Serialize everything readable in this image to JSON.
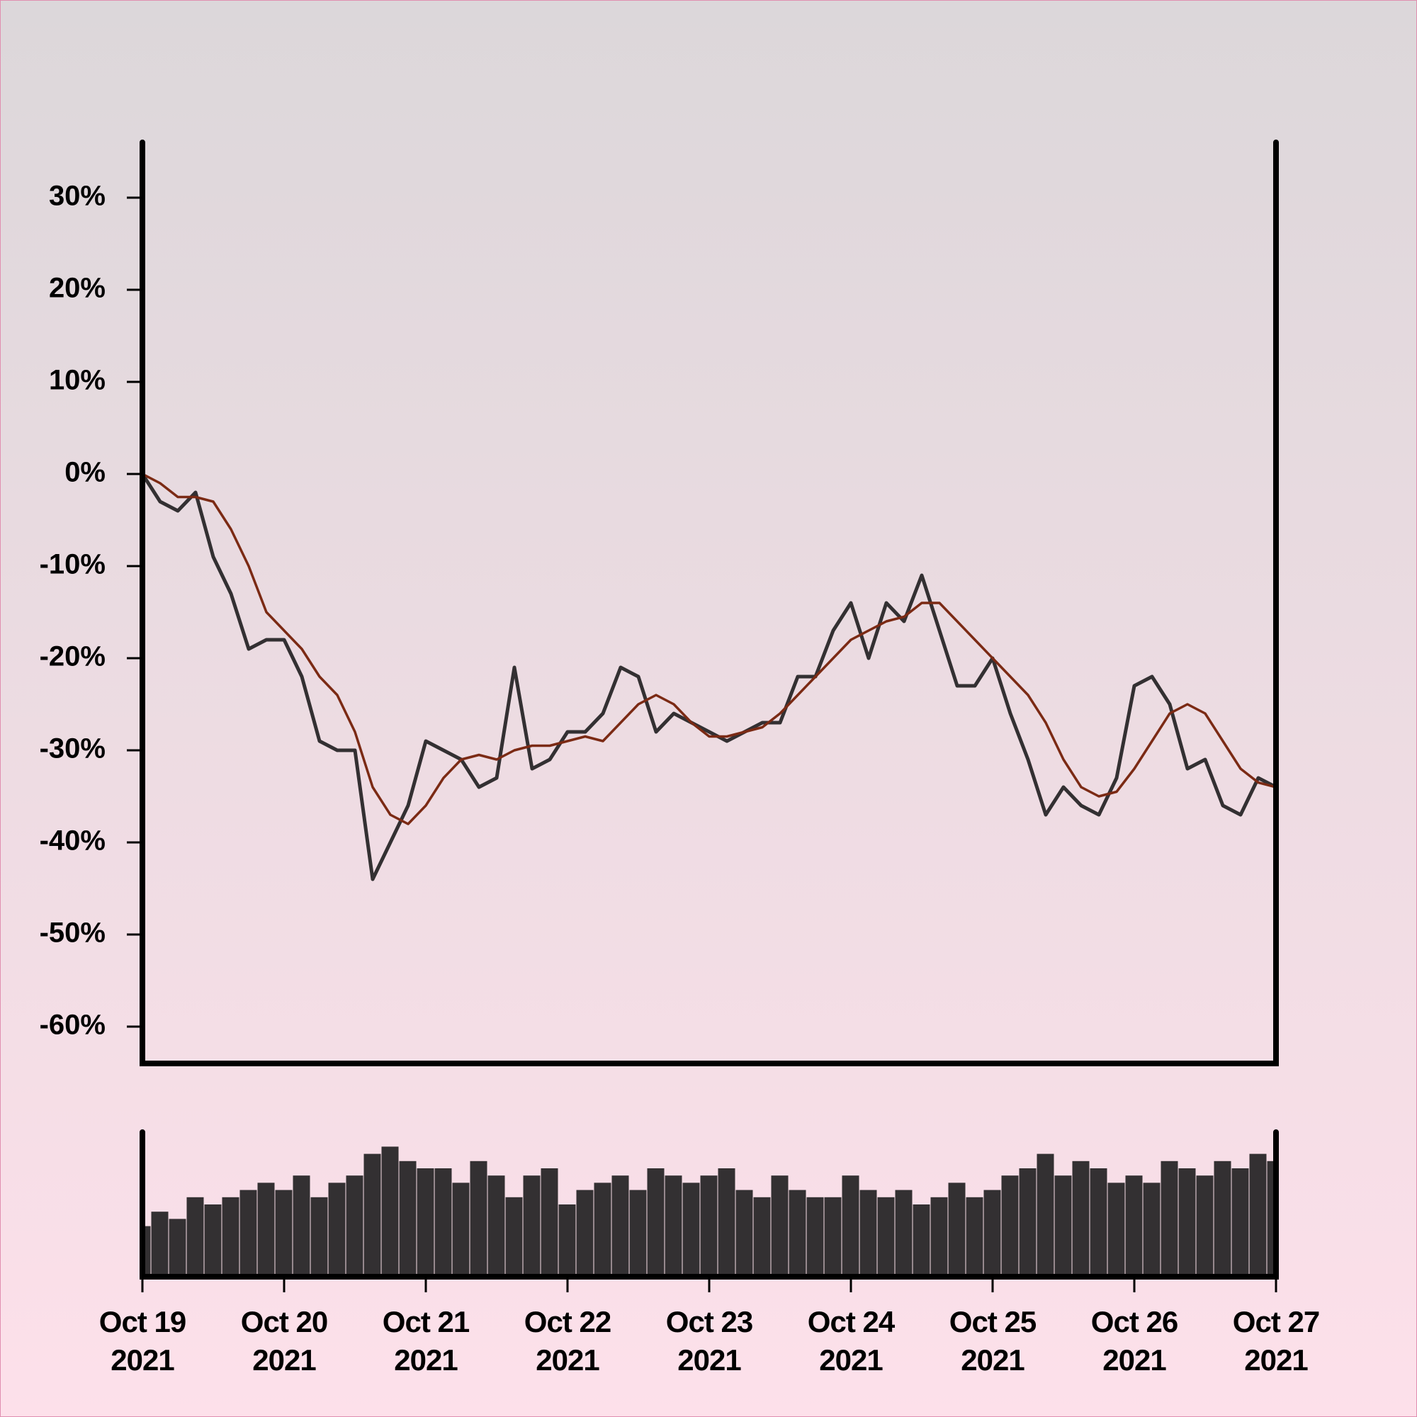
{
  "chart_data": [
    {
      "type": "line",
      "x": [
        0,
        0.125,
        0.25,
        0.375,
        0.5,
        0.625,
        0.75,
        0.875,
        1,
        1.125,
        1.25,
        1.375,
        1.5,
        1.625,
        1.75,
        1.875,
        2,
        2.125,
        2.25,
        2.375,
        2.5,
        2.625,
        2.75,
        2.875,
        3,
        3.125,
        3.25,
        3.375,
        3.5,
        3.625,
        3.75,
        3.875,
        4,
        4.125,
        4.25,
        4.375,
        4.5,
        4.625,
        4.75,
        4.875,
        5,
        5.125,
        5.25,
        5.375,
        5.5,
        5.625,
        5.75,
        5.875,
        6,
        6.125,
        6.25,
        6.375,
        6.5,
        6.625,
        6.75,
        6.875,
        7,
        7.125,
        7.25,
        7.375,
        7.5,
        7.625,
        7.75,
        7.875,
        8
      ],
      "series": [
        {
          "color": "#333032",
          "values": [
            0,
            -3,
            -4,
            -2,
            -9,
            -13,
            -19,
            -18,
            -18,
            -22,
            -29,
            -30,
            -30,
            -44,
            -40,
            -36,
            -29,
            -30,
            -31,
            -34,
            -33,
            -21,
            -32,
            -31,
            -28,
            -28,
            -26,
            -21,
            -22,
            -28,
            -26,
            -27,
            -28,
            -29,
            -28,
            -27,
            -27,
            -22,
            -22,
            -17,
            -14,
            -20,
            -14,
            -16,
            -11,
            -17,
            -23,
            -23,
            -20,
            -26,
            -31,
            -37,
            -34,
            -36,
            -37,
            -33,
            -23,
            -22,
            -25,
            -32,
            -31,
            -36,
            -37,
            -33,
            -34
          ]
        },
        {
          "color": "#7b2a14",
          "values": [
            0,
            -1,
            -2.5,
            -2.5,
            -3,
            -6,
            -10,
            -15,
            -17,
            -19,
            -22,
            -24,
            -28,
            -34,
            -37,
            -38,
            -36,
            -33,
            -31,
            -30.5,
            -31,
            -30,
            -29.5,
            -29.5,
            -29,
            -28.5,
            -29,
            -27,
            -25,
            -24,
            -25,
            -27,
            -28.5,
            -28.5,
            -28,
            -27.5,
            -26,
            -24,
            -22,
            -20,
            -18,
            -17,
            -16,
            -15.5,
            -14,
            -14,
            -16,
            -18,
            -20,
            -22,
            -24,
            -27,
            -31,
            -34,
            -35,
            -34.5,
            -32,
            -29,
            -26,
            -25,
            -26,
            -29,
            -32,
            -33.5,
            -34
          ]
        }
      ],
      "xlim": [
        0,
        8
      ],
      "ylim": [
        -64,
        36
      ],
      "yticks": [
        {
          "value": 30,
          "label": "30%"
        },
        {
          "value": 20,
          "label": "20%"
        },
        {
          "value": 10,
          "label": "10%"
        },
        {
          "value": 0,
          "label": "0%"
        },
        {
          "value": -10,
          "label": "-10%"
        },
        {
          "value": -20,
          "label": "-20%"
        },
        {
          "value": -30,
          "label": "-30%"
        },
        {
          "value": -40,
          "label": "-40%"
        },
        {
          "value": -50,
          "label": "-50%"
        },
        {
          "value": -60,
          "label": "-60%"
        }
      ]
    },
    {
      "type": "bar",
      "x": [
        0,
        0.125,
        0.25,
        0.375,
        0.5,
        0.625,
        0.75,
        0.875,
        1,
        1.125,
        1.25,
        1.375,
        1.5,
        1.625,
        1.75,
        1.875,
        2,
        2.125,
        2.25,
        2.375,
        2.5,
        2.625,
        2.75,
        2.875,
        3,
        3.125,
        3.25,
        3.375,
        3.5,
        3.625,
        3.75,
        3.875,
        4,
        4.125,
        4.25,
        4.375,
        4.5,
        4.625,
        4.75,
        4.875,
        5,
        5.125,
        5.25,
        5.375,
        5.5,
        5.625,
        5.75,
        5.875,
        6,
        6.125,
        6.25,
        6.375,
        6.5,
        6.625,
        6.75,
        6.875,
        7,
        7.125,
        7.25,
        7.375,
        7.5,
        7.625,
        7.75,
        7.875,
        8
      ],
      "values": [
        35,
        45,
        40,
        55,
        50,
        55,
        60,
        65,
        60,
        70,
        55,
        65,
        70,
        85,
        90,
        80,
        75,
        75,
        65,
        80,
        70,
        55,
        70,
        75,
        50,
        60,
        65,
        70,
        60,
        75,
        70,
        65,
        70,
        75,
        60,
        55,
        70,
        60,
        55,
        55,
        70,
        60,
        55,
        60,
        50,
        55,
        65,
        55,
        60,
        70,
        75,
        85,
        70,
        80,
        75,
        65,
        70,
        65,
        80,
        75,
        70,
        80,
        75,
        85,
        80
      ],
      "color": "#333032",
      "xlim": [
        0,
        8
      ],
      "ylim": [
        0,
        100
      ],
      "xticks": [
        {
          "value": 0,
          "label": "Oct 19 2021"
        },
        {
          "value": 1,
          "label": "Oct 20 2021"
        },
        {
          "value": 2,
          "label": "Oct 21 2021"
        },
        {
          "value": 3,
          "label": "Oct 22 2021"
        },
        {
          "value": 4,
          "label": "Oct 23 2021"
        },
        {
          "value": 5,
          "label": "Oct 24 2021"
        },
        {
          "value": 6,
          "label": "Oct 25 2021"
        },
        {
          "value": 7,
          "label": "Oct 26 2021"
        },
        {
          "value": 8,
          "label": "Oct 27 2021"
        }
      ]
    }
  ]
}
